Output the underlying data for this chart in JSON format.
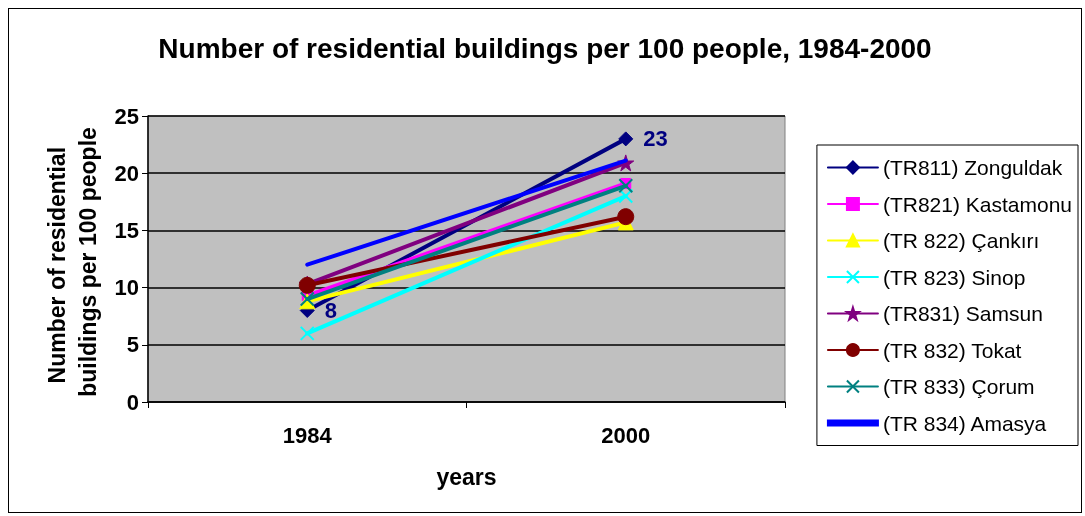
{
  "chart_data": {
    "type": "line",
    "title": "Number of residential buildings per 100 people, 1984-2000",
    "xlabel": "years",
    "ylabel": "Number of residential buildings per 100 people",
    "categories": [
      "1984",
      "2000"
    ],
    "series": [
      {
        "name": "(TR811) Zonguldak",
        "color": "#000080",
        "marker": "diamond",
        "values": [
          8,
          23
        ],
        "value_labels": [
          "8",
          "23"
        ]
      },
      {
        "name": "(TR821) Kastamonu",
        "color": "#ff00ff",
        "marker": "square",
        "values": [
          9.3,
          19.1
        ]
      },
      {
        "name": "(TR 822) Çankırı",
        "color": "#ffff00",
        "marker": "triangle",
        "values": [
          8.8,
          15.7
        ]
      },
      {
        "name": "(TR 823) Sinop",
        "color": "#00ffff",
        "marker": "cross",
        "values": [
          6,
          18
        ]
      },
      {
        "name": "(TR831) Samsun",
        "color": "#800080",
        "marker": "star",
        "values": [
          10.3,
          20.9
        ]
      },
      {
        "name": "(TR 832) Tokat",
        "color": "#800000",
        "marker": "circle",
        "values": [
          10.2,
          16.2
        ]
      },
      {
        "name": "(TR 833) Çorum",
        "color": "#008080",
        "marker": "cross",
        "values": [
          9,
          18.9
        ]
      },
      {
        "name": "(TR 834) Amasya",
        "color": "#0000ff",
        "marker": "none",
        "values": [
          12,
          21.1
        ]
      }
    ],
    "ylim": [
      0,
      25
    ],
    "yticks": [
      0,
      5,
      10,
      15,
      20,
      25
    ],
    "grid": "y",
    "legend": "right",
    "line_style": "solid"
  }
}
